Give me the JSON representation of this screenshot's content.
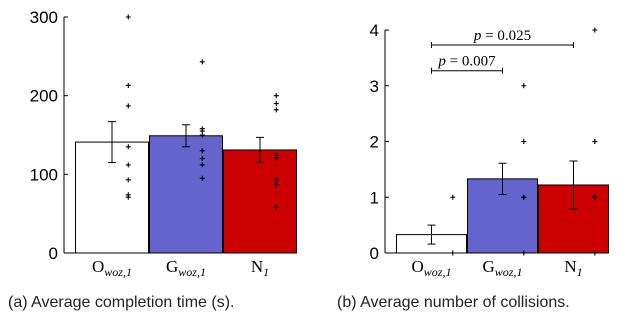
{
  "chart_data": [
    {
      "type": "bar",
      "caption": "(a) Average completion time (s).",
      "categories": [
        {
          "main": "O",
          "sub": "woz,1"
        },
        {
          "main": "G",
          "sub": "woz,1"
        },
        {
          "main": "N",
          "sub": "1"
        }
      ],
      "values": [
        141,
        149,
        131
      ],
      "errors": [
        26,
        14,
        16
      ],
      "colors": [
        "#ffffff",
        "#6464cc",
        "#cc0000"
      ],
      "ylim": [
        0,
        300
      ],
      "yticks": [
        0,
        100,
        200,
        300
      ],
      "points": [
        [
          300,
          213,
          187,
          135,
          112,
          93,
          74,
          71
        ],
        [
          243,
          158,
          155,
          150,
          130,
          120,
          112,
          95
        ],
        [
          200,
          190,
          182,
          124,
          121,
          93,
          87,
          58
        ]
      ],
      "annotations": []
    },
    {
      "type": "bar",
      "caption": "(b) Average number of collisions.",
      "categories": [
        {
          "main": "O",
          "sub": "woz,1"
        },
        {
          "main": "G",
          "sub": "woz,1"
        },
        {
          "main": "N",
          "sub": "1"
        }
      ],
      "values": [
        0.33,
        1.33,
        1.22
      ],
      "errors": [
        0.17,
        0.28,
        0.43
      ],
      "colors": [
        "#ffffff",
        "#6464cc",
        "#cc0000"
      ],
      "ylim": [
        0,
        4
      ],
      "yticks": [
        0,
        1,
        2,
        3,
        4
      ],
      "points": [
        [
          1,
          0
        ],
        [
          3,
          2,
          1,
          1,
          0
        ],
        [
          4,
          2,
          2,
          1,
          1,
          0
        ]
      ],
      "annotations": [
        {
          "from": 0,
          "to": 1,
          "text": "p = 0.007"
        },
        {
          "from": 0,
          "to": 2,
          "text": "p = 0.025"
        }
      ]
    }
  ]
}
